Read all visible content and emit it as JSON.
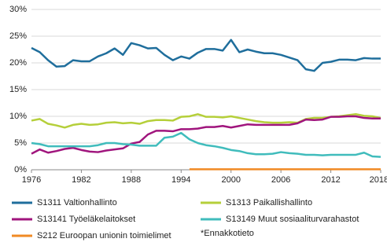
{
  "chart_data": {
    "type": "line",
    "x": [
      1976,
      1977,
      1978,
      1979,
      1980,
      1981,
      1982,
      1983,
      1984,
      1985,
      1986,
      1987,
      1988,
      1989,
      1990,
      1991,
      1992,
      1993,
      1994,
      1995,
      1996,
      1997,
      1998,
      1999,
      2000,
      2001,
      2002,
      2003,
      2004,
      2005,
      2006,
      2007,
      2008,
      2009,
      2010,
      2011,
      2012,
      2013,
      2014,
      2015,
      2016,
      2017,
      2018
    ],
    "series": [
      {
        "name": "S1311 Valtionhallinto",
        "color": "#1f6e9c",
        "values": [
          22.8,
          22.0,
          20.5,
          19.3,
          19.4,
          20.5,
          20.3,
          20.3,
          21.2,
          21.8,
          22.7,
          21.5,
          23.7,
          23.3,
          22.7,
          22.8,
          21.5,
          20.5,
          21.2,
          20.8,
          21.9,
          22.6,
          22.6,
          22.3,
          24.3,
          22.0,
          22.5,
          22.1,
          21.8,
          21.8,
          21.5,
          21.0,
          20.5,
          18.8,
          18.5,
          20.0,
          20.2,
          20.6,
          20.6,
          20.5,
          20.9,
          20.8,
          20.8
        ]
      },
      {
        "name": "S1313 Paikallishallinto",
        "color": "#b5cf3a",
        "values": [
          9.2,
          9.5,
          8.6,
          8.3,
          7.9,
          8.4,
          8.6,
          8.4,
          8.5,
          8.8,
          8.9,
          8.7,
          8.8,
          8.6,
          9.1,
          9.3,
          9.3,
          9.2,
          9.9,
          10.0,
          10.4,
          9.9,
          9.9,
          9.8,
          10.0,
          9.7,
          9.4,
          9.1,
          8.9,
          8.8,
          8.8,
          8.9,
          8.8,
          9.5,
          9.7,
          9.7,
          9.9,
          10.0,
          10.2,
          10.4,
          10.1,
          10.0,
          9.7
        ]
      },
      {
        "name": "S13141 Työeläkelaitokset",
        "color": "#a0157d",
        "values": [
          3.0,
          3.8,
          3.2,
          3.5,
          3.9,
          4.1,
          3.7,
          3.4,
          3.3,
          3.6,
          3.8,
          4.0,
          4.9,
          5.2,
          6.6,
          7.3,
          7.3,
          7.2,
          7.6,
          7.6,
          7.7,
          8.0,
          8.0,
          8.2,
          7.9,
          8.2,
          8.5,
          8.4,
          8.4,
          8.4,
          8.4,
          8.4,
          8.7,
          9.4,
          9.3,
          9.4,
          9.9,
          9.9,
          10.0,
          10.0,
          9.7,
          9.6,
          9.6
        ]
      },
      {
        "name": "S13149 Muut sosiaaliturvarahastot",
        "color": "#40bcbc",
        "values": [
          5.0,
          4.8,
          4.4,
          4.4,
          4.4,
          4.4,
          4.4,
          4.4,
          4.6,
          5.0,
          5.0,
          4.8,
          4.7,
          4.5,
          4.5,
          4.5,
          6.0,
          6.2,
          6.9,
          5.7,
          5.0,
          4.6,
          4.4,
          4.1,
          3.7,
          3.5,
          3.1,
          2.9,
          2.9,
          3.0,
          3.3,
          3.1,
          3.0,
          2.8,
          2.8,
          2.7,
          2.8,
          2.8,
          2.8,
          2.8,
          3.2,
          2.5,
          2.4
        ]
      },
      {
        "name": "S212 Euroopan unionin toimielimet",
        "color": "#f08a24",
        "values": [
          null,
          null,
          null,
          null,
          null,
          null,
          null,
          null,
          null,
          null,
          null,
          null,
          null,
          null,
          null,
          null,
          null,
          null,
          null,
          0.1,
          0.1,
          0.1,
          0.1,
          0.1,
          0.1,
          0.1,
          0.1,
          0.1,
          0.1,
          0.1,
          0.1,
          0.1,
          0.1,
          0.1,
          0.1,
          0.1,
          0.1,
          0.1,
          0.1,
          0.1,
          0.1,
          0.1,
          0.1
        ]
      }
    ],
    "xlim": [
      1976,
      2018
    ],
    "xticks": [
      1976,
      1982,
      1988,
      1994,
      2000,
      2006,
      2012,
      {
        "value": 2018,
        "label": "2018*"
      }
    ],
    "ylim": [
      0,
      30
    ],
    "yticks": [
      {
        "value": 0,
        "label": "0%"
      },
      {
        "value": 5,
        "label": "5%"
      },
      {
        "value": 10,
        "label": "10%"
      },
      {
        "value": 15,
        "label": "15%"
      },
      {
        "value": 20,
        "label": "20%"
      },
      {
        "value": 25,
        "label": "25%"
      },
      {
        "value": 30,
        "label": "30%"
      }
    ],
    "grid": true,
    "annotation": "*Ennakkotieto"
  }
}
